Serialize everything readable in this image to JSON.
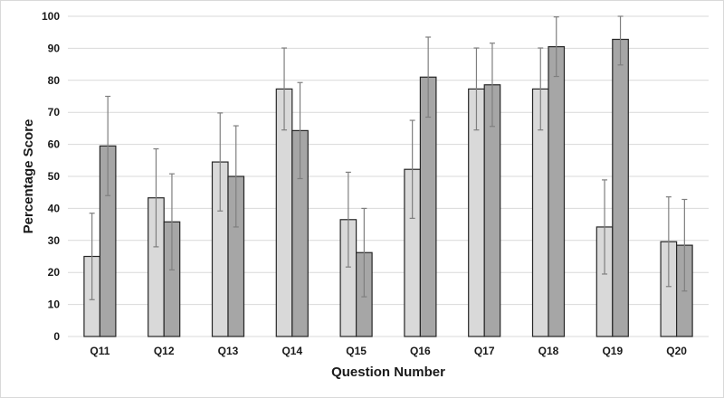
{
  "chart_data": {
    "type": "bar",
    "title": "",
    "xlabel": "Question Number",
    "ylabel": "Percentage Score",
    "ylim": [
      0,
      100
    ],
    "yticks": [
      0,
      10,
      20,
      30,
      40,
      50,
      60,
      70,
      80,
      90,
      100
    ],
    "grid": true,
    "legend": "none",
    "categories": [
      "Q11",
      "Q12",
      "Q13",
      "Q14",
      "Q15",
      "Q16",
      "Q17",
      "Q18",
      "Q19",
      "Q20"
    ],
    "series": [
      {
        "color": "#d9d9d9",
        "values": [
          25.0,
          43.3,
          54.5,
          77.3,
          36.5,
          52.2,
          77.3,
          77.3,
          34.2,
          29.6
        ],
        "errors": [
          13.5,
          15.3,
          15.3,
          12.8,
          14.8,
          15.3,
          12.8,
          12.8,
          14.7,
          14.0
        ]
      },
      {
        "color": "#a6a6a6",
        "values": [
          59.5,
          35.8,
          50.0,
          64.3,
          26.2,
          81.0,
          78.6,
          90.5,
          92.8,
          28.5
        ],
        "errors": [
          15.5,
          15.0,
          15.8,
          15.0,
          13.8,
          12.5,
          13.0,
          9.3,
          8.0,
          14.3
        ]
      }
    ]
  }
}
